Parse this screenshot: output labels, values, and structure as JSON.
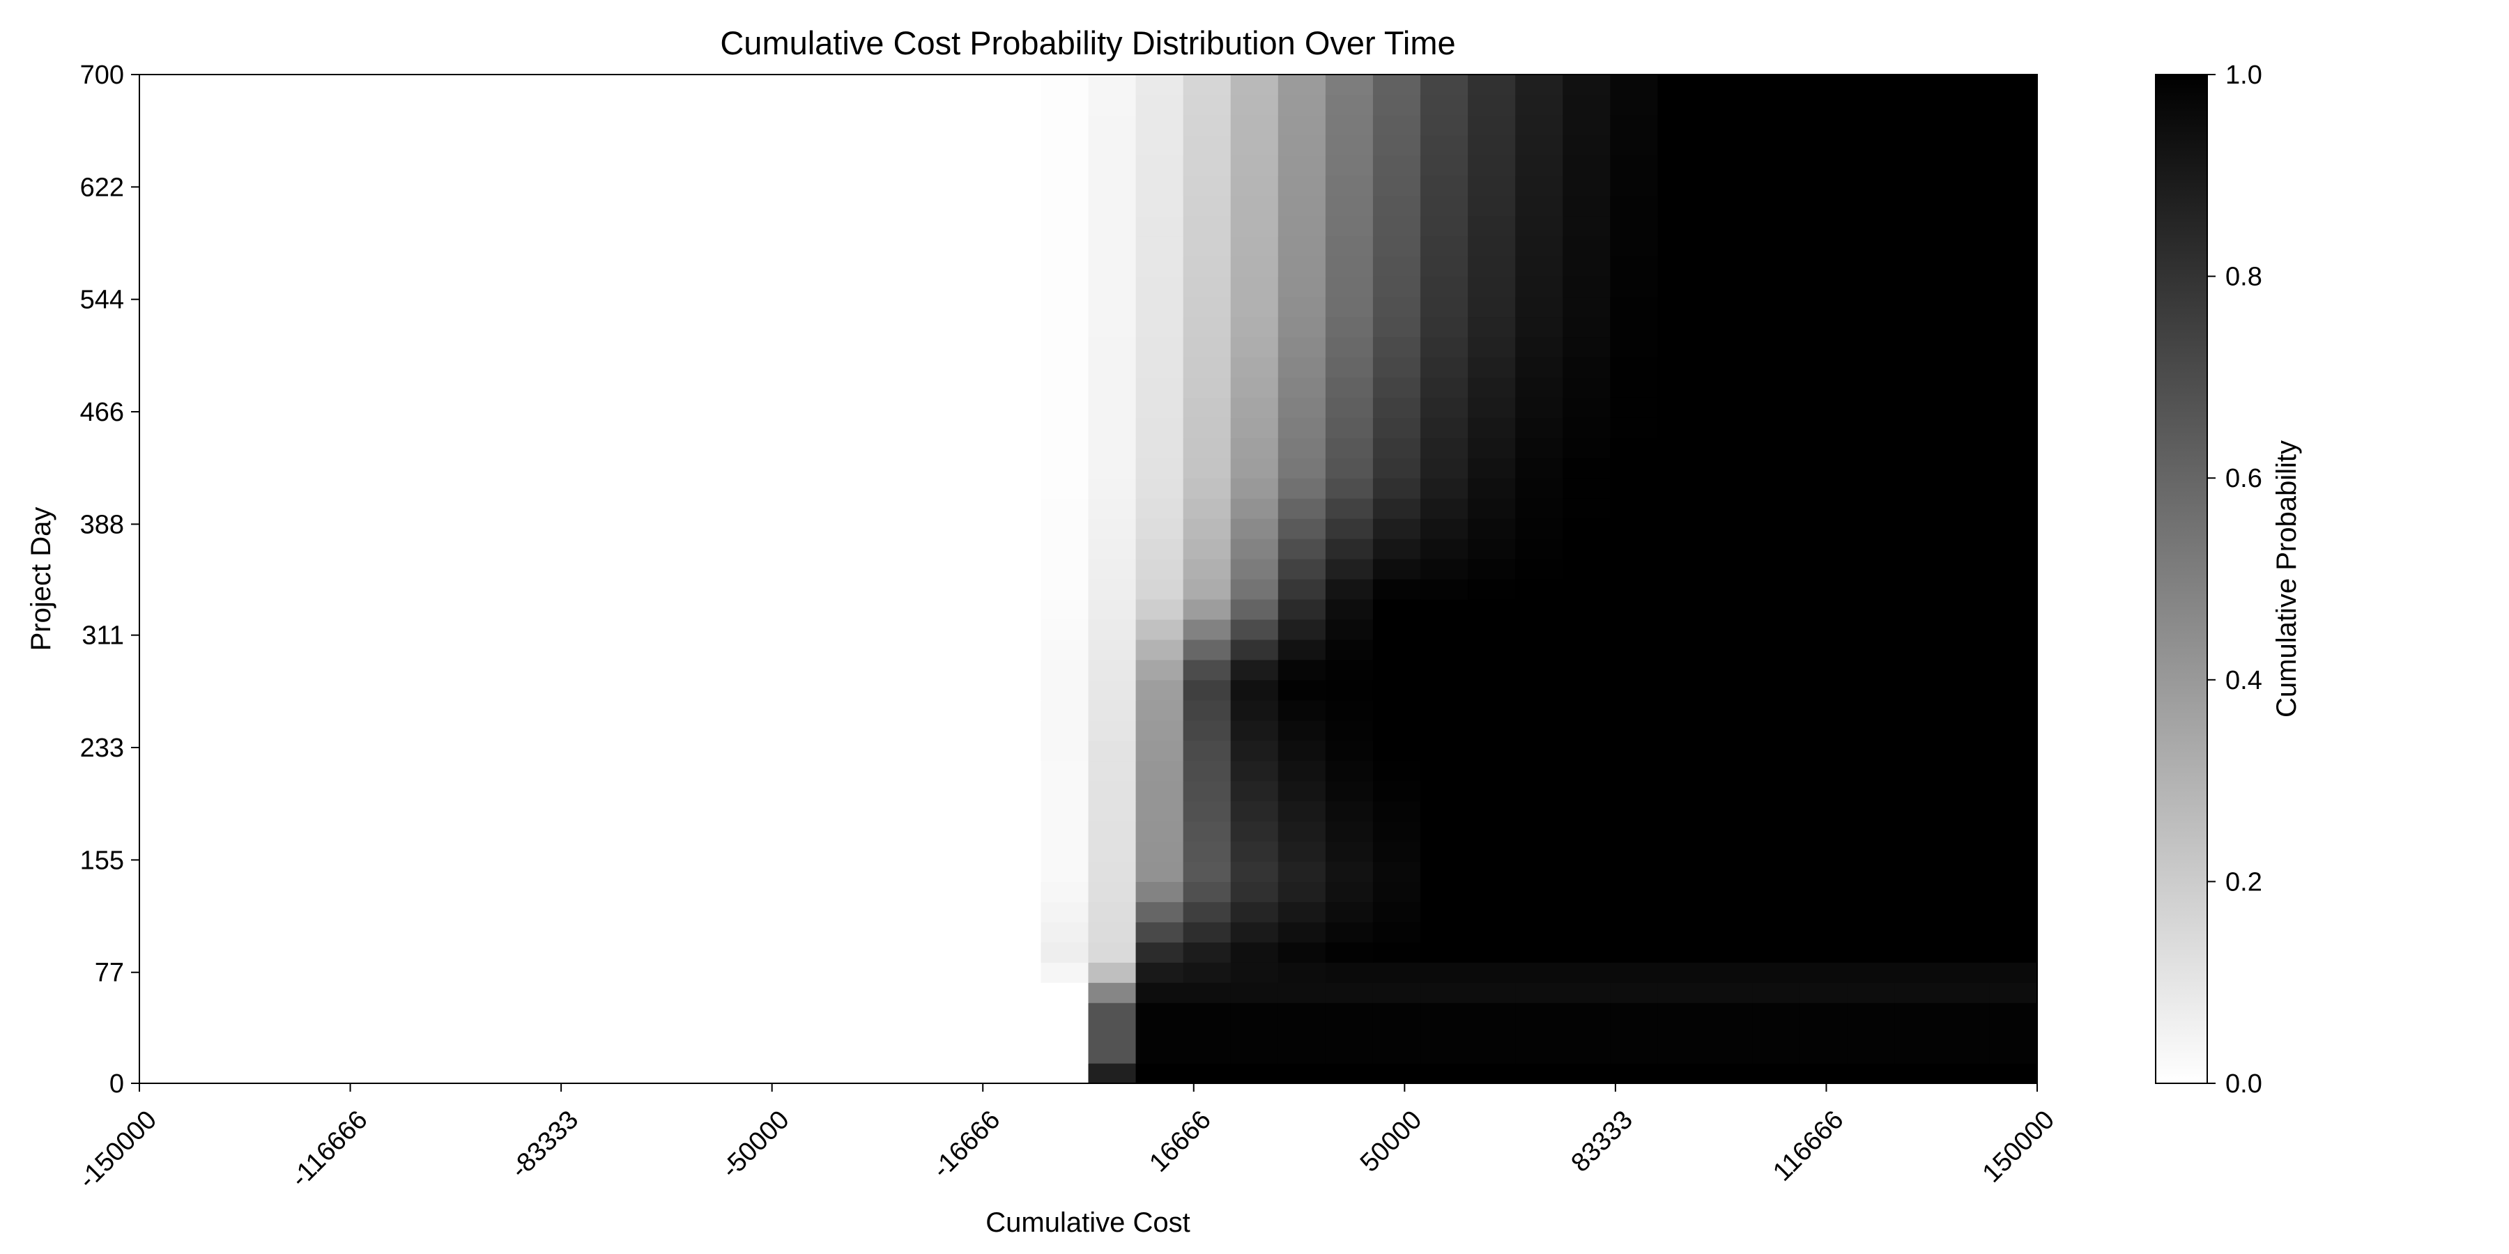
{
  "chart_data": {
    "type": "heatmap",
    "title": "Cumulative Cost Probability Distribution Over Time",
    "xlabel": "Cumulative Cost",
    "ylabel": "Project Day",
    "xlim": [
      -150000,
      150000
    ],
    "ylim": [
      0,
      700
    ],
    "x_ticks": [
      {
        "value": -150000,
        "label": "-150000"
      },
      {
        "value": -116666,
        "label": "-116666"
      },
      {
        "value": -83333,
        "label": "-83333"
      },
      {
        "value": -50000,
        "label": "-50000"
      },
      {
        "value": -16666,
        "label": "-16666"
      },
      {
        "value": 16666,
        "label": "16666"
      },
      {
        "value": 50000,
        "label": "50000"
      },
      {
        "value": 83333,
        "label": "83333"
      },
      {
        "value": 116666,
        "label": "116666"
      },
      {
        "value": 150000,
        "label": "150000"
      }
    ],
    "y_ticks": [
      {
        "value": 0,
        "label": "0"
      },
      {
        "value": 77,
        "label": "77"
      },
      {
        "value": 155,
        "label": "155"
      },
      {
        "value": 233,
        "label": "233"
      },
      {
        "value": 311,
        "label": "311"
      },
      {
        "value": 388,
        "label": "388"
      },
      {
        "value": 466,
        "label": "466"
      },
      {
        "value": 544,
        "label": "544"
      },
      {
        "value": 622,
        "label": "622"
      },
      {
        "value": 700,
        "label": "700"
      }
    ],
    "colorbar": {
      "label": "Cumulative Probability",
      "range": [
        0.0,
        1.0
      ],
      "ticks": [
        {
          "value": 0.0,
          "label": "0.0"
        },
        {
          "value": 0.2,
          "label": "0.2"
        },
        {
          "value": 0.4,
          "label": "0.4"
        },
        {
          "value": 0.6,
          "label": "0.6"
        },
        {
          "value": 0.8,
          "label": "0.8"
        },
        {
          "value": 1.0,
          "label": "1.0"
        }
      ],
      "colormap": "Greys",
      "low_color": "#ffffff",
      "high_color": "#000000"
    },
    "grid": false,
    "cost_bins": [
      -150000,
      -142500,
      -135000,
      -127500,
      -120000,
      -112500,
      -105000,
      -97500,
      -90000,
      -82500,
      -75000,
      -67500,
      -60000,
      -52500,
      -45000,
      -37500,
      -30000,
      -22500,
      -15000,
      -7500,
      0,
      7500,
      15000,
      22500,
      30000,
      37500,
      45000,
      52500,
      60000,
      67500,
      75000,
      82500,
      90000,
      97500,
      105000,
      112500,
      120000,
      127500,
      135000,
      142500,
      150000
    ],
    "day_bins": [
      0,
      14,
      56,
      70,
      84,
      98,
      112,
      126,
      140,
      154,
      168,
      182,
      196,
      210,
      224,
      238,
      252,
      266,
      280,
      294,
      308,
      322,
      336,
      350,
      364,
      378,
      392,
      406,
      420,
      434,
      448,
      462,
      476,
      490,
      504,
      518,
      532,
      546,
      560,
      574,
      588,
      602,
      616,
      630,
      644,
      658,
      672,
      686,
      700
    ],
    "cdf_rows": [
      {
        "day": 0,
        "cdf": [
          [
            0,
            0.0
          ],
          [
            1000,
            1.0
          ]
        ]
      },
      {
        "day": 14,
        "cdf": [
          [
            0,
            0.0
          ],
          [
            1000,
            0.75
          ],
          [
            9500,
            0.75
          ],
          [
            10500,
            1.0
          ]
        ]
      },
      {
        "day": 56,
        "cdf": [
          [
            0,
            0.0
          ],
          [
            1000,
            0.6
          ],
          [
            9500,
            0.6
          ],
          [
            10500,
            0.98
          ]
        ]
      },
      {
        "day": 70,
        "cdf": [
          [
            0,
            0.0
          ],
          [
            1000,
            0.35
          ],
          [
            9500,
            0.35
          ],
          [
            10500,
            0.92
          ]
        ]
      },
      {
        "day": 84,
        "cdf": [
          [
            -10000,
            0.0
          ],
          [
            -7000,
            0.02
          ],
          [
            1000,
            0.15
          ],
          [
            9500,
            0.15
          ],
          [
            10500,
            0.88
          ],
          [
            24000,
            0.95
          ],
          [
            30000,
            0.98
          ],
          [
            40000,
            1.0
          ]
        ]
      },
      {
        "day": 140,
        "cdf": [
          [
            -9000,
            0.0
          ],
          [
            -7000,
            0.02
          ],
          [
            -1000,
            0.03
          ],
          [
            0,
            0.1
          ],
          [
            9000,
            0.15
          ],
          [
            12000,
            0.52
          ],
          [
            17000,
            0.6
          ],
          [
            22000,
            0.75
          ],
          [
            40000,
            0.92
          ],
          [
            55000,
            1.0
          ]
        ]
      },
      {
        "day": 224,
        "cdf": [
          [
            -9000,
            0.0
          ],
          [
            -7000,
            0.02
          ],
          [
            -1000,
            0.03
          ],
          [
            0,
            0.09
          ],
          [
            9000,
            0.14
          ],
          [
            12000,
            0.5
          ],
          [
            17000,
            0.62
          ],
          [
            22000,
            0.85
          ],
          [
            35000,
            0.95
          ],
          [
            45000,
            1.0
          ]
        ]
      },
      {
        "day": 280,
        "cdf": [
          [
            -9000,
            0.0
          ],
          [
            -7000,
            0.01
          ],
          [
            0,
            0.05
          ],
          [
            9000,
            0.15
          ],
          [
            12000,
            0.45
          ],
          [
            17000,
            0.7
          ],
          [
            24000,
            0.92
          ],
          [
            32000,
            1.0
          ]
        ]
      },
      {
        "day": 336,
        "cdf": [
          [
            -7000,
            0.0
          ],
          [
            0,
            0.03
          ],
          [
            9000,
            0.12
          ],
          [
            17000,
            0.28
          ],
          [
            26000,
            0.55
          ],
          [
            35000,
            0.85
          ],
          [
            45000,
            1.0
          ]
        ]
      },
      {
        "day": 420,
        "cdf": [
          [
            -7000,
            0.0
          ],
          [
            0,
            0.02
          ],
          [
            9000,
            0.08
          ],
          [
            17000,
            0.2
          ],
          [
            26000,
            0.38
          ],
          [
            38000,
            0.62
          ],
          [
            52000,
            0.85
          ],
          [
            68000,
            0.97
          ],
          [
            80000,
            1.0
          ]
        ]
      },
      {
        "day": 532,
        "cdf": [
          [
            -7000,
            0.0
          ],
          [
            0,
            0.02
          ],
          [
            9000,
            0.07
          ],
          [
            17000,
            0.17
          ],
          [
            27000,
            0.32
          ],
          [
            40000,
            0.55
          ],
          [
            55000,
            0.78
          ],
          [
            72000,
            0.93
          ],
          [
            88000,
            1.0
          ]
        ]
      },
      {
        "day": 700,
        "cdf": [
          [
            -7000,
            0.0
          ],
          [
            0,
            0.02
          ],
          [
            9000,
            0.06
          ],
          [
            18000,
            0.15
          ],
          [
            28000,
            0.3
          ],
          [
            42000,
            0.52
          ],
          [
            58000,
            0.75
          ],
          [
            76000,
            0.92
          ],
          [
            92000,
            1.0
          ]
        ]
      }
    ]
  }
}
